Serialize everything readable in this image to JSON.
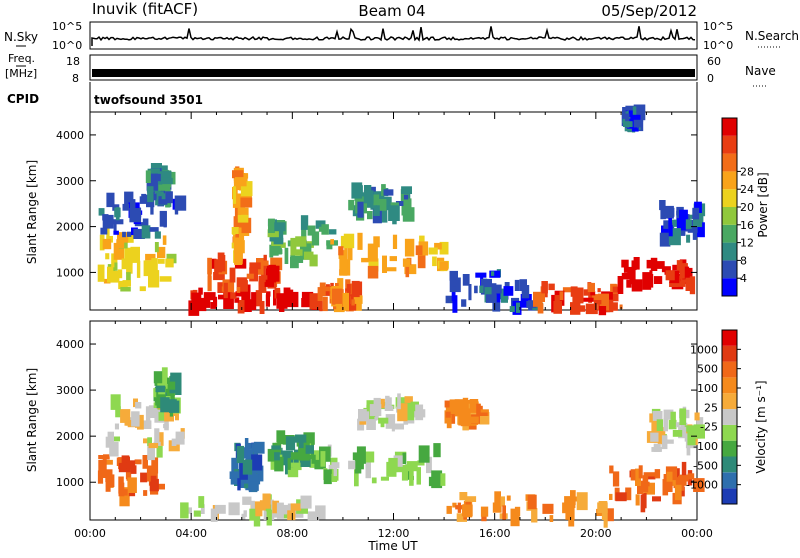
{
  "header": {
    "station": "Inuvik (fitACF)",
    "beam": "Beam 04",
    "date": "05/Sep/2012"
  },
  "status_panels": {
    "nsky_label": "N.Sky",
    "nsky_ticks": [
      "10^5",
      "10^0"
    ],
    "nsearch_label": "N.Search",
    "nsearch_ticks": [
      "10^5",
      "10^0"
    ],
    "freq_label_1": "Freq.",
    "freq_label_2": "[MHz]",
    "freq_ticks": [
      "18",
      "8"
    ],
    "nave_label": "Nave",
    "nave_ticks": [
      "60",
      "0"
    ],
    "cpid_label": "CPID",
    "cpid_value": "twofsound 3501"
  },
  "chart_data": [
    {
      "type": "heatmap",
      "title": "",
      "xlabel": "Time UT",
      "ylabel": "Slant Range [km]",
      "x_ticks": [
        "00:00",
        "04:00",
        "08:00",
        "12:00",
        "16:00",
        "20:00",
        "00:00"
      ],
      "xlim_hours": [
        0,
        24
      ],
      "ylim": [
        180,
        4500
      ],
      "y_ticks": [
        1000,
        2000,
        3000,
        4000
      ],
      "colorbar": {
        "label": "Power [dB]",
        "ticks": [
          "4",
          "8",
          "12",
          "16",
          "20",
          "24",
          "28"
        ],
        "colors": [
          "#0000ff",
          "#2c4bb3",
          "#2f8a82",
          "#49a862",
          "#90c83c",
          "#ecd21e",
          "#f9a31a",
          "#f26d18",
          "#e83d12",
          "#e00000"
        ]
      },
      "regions": [
        {
          "t0": 0.3,
          "t1": 3.2,
          "r0": 600,
          "r1": 1800,
          "level": 5
        },
        {
          "t0": 0.3,
          "t1": 3.5,
          "r0": 1800,
          "r1": 2700,
          "level": 1
        },
        {
          "t0": 2.2,
          "t1": 3.0,
          "r0": 2500,
          "r1": 3300,
          "level": 2
        },
        {
          "t0": 3.8,
          "t1": 9.0,
          "r0": 200,
          "r1": 600,
          "level": 9
        },
        {
          "t0": 4.6,
          "t1": 7.2,
          "r0": 600,
          "r1": 1300,
          "level": 8
        },
        {
          "t0": 5.6,
          "t1": 6.0,
          "r0": 1300,
          "r1": 3200,
          "level": 6
        },
        {
          "t0": 7.0,
          "t1": 9.5,
          "r0": 1200,
          "r1": 2100,
          "level": 3
        },
        {
          "t0": 9.0,
          "t1": 10.5,
          "r0": 300,
          "r1": 700,
          "level": 7
        },
        {
          "t0": 9.5,
          "t1": 14.0,
          "r0": 1000,
          "r1": 1700,
          "level": 6
        },
        {
          "t0": 10.2,
          "t1": 12.5,
          "r0": 2200,
          "r1": 2800,
          "level": 2
        },
        {
          "t0": 14.0,
          "t1": 17.5,
          "r0": 200,
          "r1": 1000,
          "level": 1
        },
        {
          "t0": 17.5,
          "t1": 21.0,
          "r0": 200,
          "r1": 700,
          "level": 8
        },
        {
          "t0": 20.5,
          "t1": 24.0,
          "r0": 700,
          "r1": 1200,
          "level": 9
        },
        {
          "t0": 22.5,
          "t1": 24.0,
          "r0": 1700,
          "r1": 2500,
          "level": 1
        },
        {
          "t0": 21.0,
          "t1": 21.5,
          "r0": 4200,
          "r1": 4500,
          "level": 1
        }
      ]
    },
    {
      "type": "heatmap",
      "title": "",
      "xlabel": "Time UT",
      "ylabel": "Slant Range [km]",
      "x_ticks": [
        "00:00",
        "04:00",
        "08:00",
        "12:00",
        "16:00",
        "20:00",
        "00:00"
      ],
      "xlim_hours": [
        0,
        24
      ],
      "ylim": [
        180,
        4500
      ],
      "y_ticks": [
        1000,
        2000,
        3000,
        4000
      ],
      "colorbar": {
        "label": "Velocity [m s⁻¹]",
        "ticks": [
          "1000",
          "500",
          "100",
          "25",
          "-25",
          "-100",
          "-500",
          "-1000"
        ],
        "colors": [
          "#1c3cb4",
          "#2e6fae",
          "#2e8a78",
          "#46a840",
          "#8ed850",
          "#c8c8c8",
          "#f6ab3a",
          "#f58a1c",
          "#f06818",
          "#e03a12",
          "#e00000"
        ]
      },
      "regions": [
        {
          "t0": 0.2,
          "t1": 2.8,
          "r0": 600,
          "r1": 1600,
          "level": 8
        },
        {
          "t0": 0.5,
          "t1": 3.6,
          "r0": 1600,
          "r1": 2800,
          "level": 5
        },
        {
          "t0": 2.5,
          "t1": 3.2,
          "r0": 2600,
          "r1": 3300,
          "level": 3
        },
        {
          "t0": 3.5,
          "t1": 9.0,
          "r0": 200,
          "r1": 600,
          "level": 5
        },
        {
          "t0": 5.5,
          "t1": 6.5,
          "r0": 900,
          "r1": 1900,
          "level": 1
        },
        {
          "t0": 7.0,
          "t1": 9.0,
          "r0": 1300,
          "r1": 2000,
          "level": 3
        },
        {
          "t0": 9.0,
          "t1": 14.0,
          "r0": 1000,
          "r1": 1700,
          "level": 4
        },
        {
          "t0": 10.5,
          "t1": 13.0,
          "r0": 2200,
          "r1": 2800,
          "level": 5
        },
        {
          "t0": 14.0,
          "t1": 15.5,
          "r0": 2300,
          "r1": 2700,
          "level": 7
        },
        {
          "t0": 14.0,
          "t1": 21.0,
          "r0": 200,
          "r1": 700,
          "level": 7
        },
        {
          "t0": 20.5,
          "t1": 24.0,
          "r0": 500,
          "r1": 1300,
          "level": 8
        },
        {
          "t0": 22.0,
          "t1": 24.0,
          "r0": 1700,
          "r1": 2500,
          "level": 5
        }
      ]
    }
  ]
}
